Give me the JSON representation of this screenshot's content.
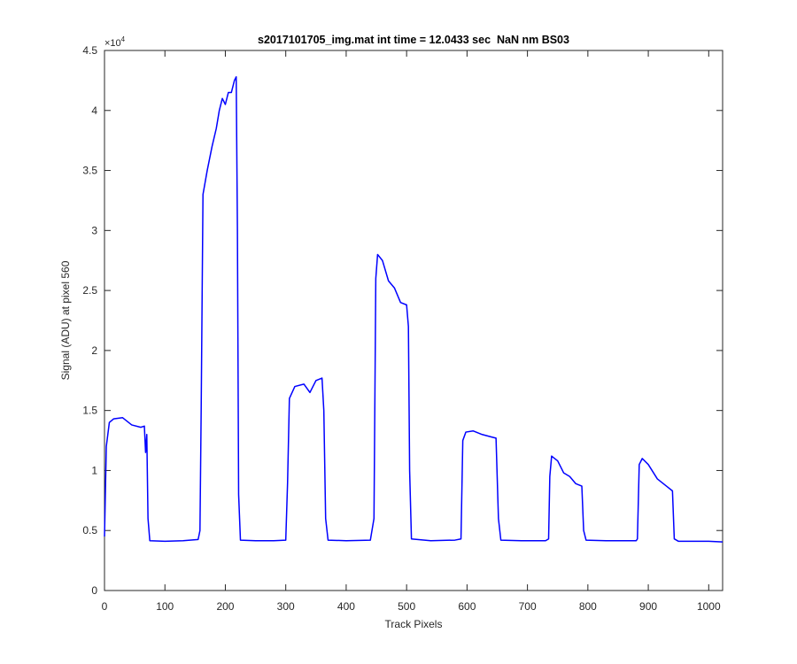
{
  "chart_data": {
    "type": "line",
    "title": "s2017101705_img.mat int time = 12.0433 sec  NaN nm BS03",
    "x_label": "Track Pixels",
    "y_label": "Signal (ADU) at pixel 560",
    "y_multiplier": {
      "base": "×10",
      "exponent": "4"
    },
    "color": "#0000ff",
    "xlim": [
      0,
      1023
    ],
    "xticks": [
      0,
      100,
      200,
      300,
      400,
      500,
      600,
      700,
      800,
      900,
      1000
    ],
    "ylim": [
      0,
      45000
    ],
    "yticks": [
      {
        "value": 0,
        "label": "0"
      },
      {
        "value": 5000,
        "label": "0.5"
      },
      {
        "value": 10000,
        "label": "1"
      },
      {
        "value": 15000,
        "label": "1.5"
      },
      {
        "value": 20000,
        "label": "2"
      },
      {
        "value": 25000,
        "label": "2.5"
      },
      {
        "value": 30000,
        "label": "3"
      },
      {
        "value": 35000,
        "label": "3.5"
      },
      {
        "value": 40000,
        "label": "4"
      },
      {
        "value": 45000,
        "label": "4.5"
      }
    ],
    "x": [
      0,
      3,
      8,
      15,
      30,
      45,
      60,
      66,
      68,
      70,
      72,
      75,
      100,
      130,
      155,
      158,
      160,
      163,
      170,
      178,
      185,
      190,
      195,
      200,
      205,
      210,
      215,
      218,
      220,
      222,
      225,
      250,
      280,
      300,
      303,
      306,
      315,
      330,
      340,
      350,
      360,
      363,
      366,
      370,
      400,
      440,
      446,
      449,
      452,
      460,
      470,
      480,
      490,
      500,
      503,
      505,
      508,
      540,
      580,
      590,
      593,
      598,
      610,
      625,
      640,
      648,
      652,
      656,
      690,
      730,
      735,
      737,
      740,
      750,
      760,
      770,
      780,
      790,
      793,
      797,
      830,
      880,
      882,
      885,
      890,
      900,
      915,
      930,
      940,
      943,
      950,
      1000,
      1023
    ],
    "values": [
      4500,
      12000,
      14000,
      14300,
      14400,
      13800,
      13600,
      13700,
      11500,
      13000,
      6000,
      4150,
      4100,
      4150,
      4250,
      5000,
      15000,
      33000,
      35000,
      37000,
      38500,
      40000,
      41000,
      40500,
      41500,
      41500,
      42500,
      42800,
      30000,
      8000,
      4200,
      4150,
      4150,
      4200,
      9000,
      16000,
      17000,
      17200,
      16500,
      17500,
      17700,
      15000,
      6000,
      4200,
      4150,
      4200,
      6000,
      26000,
      28000,
      27500,
      25800,
      25200,
      24000,
      23800,
      22000,
      10000,
      4300,
      4150,
      4200,
      4300,
      12500,
      13200,
      13300,
      13000,
      12800,
      12700,
      6000,
      4200,
      4150,
      4150,
      4300,
      9500,
      11200,
      10800,
      9800,
      9500,
      8900,
      8700,
      5000,
      4200,
      4150,
      4150,
      4300,
      10500,
      11000,
      10500,
      9300,
      8700,
      8300,
      4300,
      4100,
      4100,
      4050
    ]
  }
}
